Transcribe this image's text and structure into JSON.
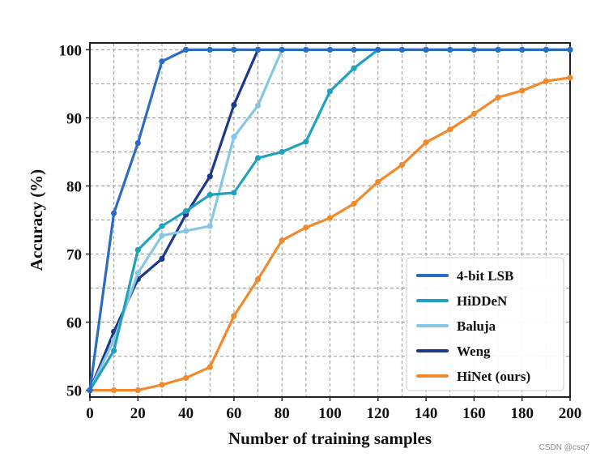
{
  "chart_data": {
    "type": "line",
    "title": "",
    "xlabel": "Number of training samples",
    "ylabel": "Accuracy (%)",
    "xlim": [
      0,
      200
    ],
    "ylim": [
      49,
      101
    ],
    "xticks": [
      0,
      20,
      40,
      60,
      80,
      100,
      120,
      140,
      160,
      180,
      200
    ],
    "yticks": [
      50,
      60,
      70,
      80,
      90,
      100
    ],
    "grid": true,
    "legend_position": "bottom-right",
    "series": [
      {
        "name": "4-bit LSB",
        "color": "#2b6cc4",
        "x": [
          0,
          10,
          20,
          30,
          40,
          50,
          60,
          70,
          80,
          90,
          100,
          110,
          120,
          130,
          140,
          150,
          160,
          170,
          180,
          190,
          200
        ],
        "y": [
          50,
          76,
          86.3,
          98.3,
          100,
          100,
          100,
          100,
          100,
          100,
          100,
          100,
          100,
          100,
          100,
          100,
          100,
          100,
          100,
          100,
          100
        ]
      },
      {
        "name": "HiDDeN",
        "color": "#22a1bf",
        "x": [
          0,
          10,
          20,
          30,
          40,
          50,
          60,
          70,
          80,
          90,
          100,
          110,
          120,
          130,
          140,
          150,
          160,
          170,
          180,
          190,
          200
        ],
        "y": [
          50,
          55.8,
          70.6,
          74.1,
          76.3,
          78.7,
          79,
          84.1,
          85,
          86.5,
          93.9,
          97.3,
          100,
          100,
          100,
          100,
          100,
          100,
          100,
          100,
          100
        ]
      },
      {
        "name": "Baluja",
        "color": "#88c6e6",
        "x": [
          0,
          10,
          20,
          30,
          40,
          50,
          60,
          70,
          80
        ],
        "y": [
          50,
          57.4,
          67.2,
          72.7,
          73.4,
          74.1,
          87.2,
          91.8,
          100
        ]
      },
      {
        "name": "Weng",
        "color": "#1d3a8a",
        "x": [
          0,
          10,
          20,
          30,
          40,
          50,
          60,
          70
        ],
        "y": [
          50,
          58.6,
          66.3,
          69.3,
          75.8,
          81.4,
          91.9,
          100
        ]
      },
      {
        "name": "HiNet (ours)",
        "color": "#f28a2c",
        "x": [
          0,
          10,
          20,
          30,
          40,
          50,
          60,
          70,
          80,
          90,
          100,
          110,
          120,
          130,
          140,
          150,
          160,
          170,
          180,
          190,
          200
        ],
        "y": [
          50,
          50,
          50,
          50.8,
          51.8,
          53.4,
          60.9,
          66.3,
          72,
          73.9,
          75.3,
          77.4,
          80.6,
          83.1,
          86.4,
          88.3,
          90.6,
          93,
          94,
          95.4,
          95.9
        ]
      }
    ]
  },
  "watermark": "CSDN @csq7"
}
